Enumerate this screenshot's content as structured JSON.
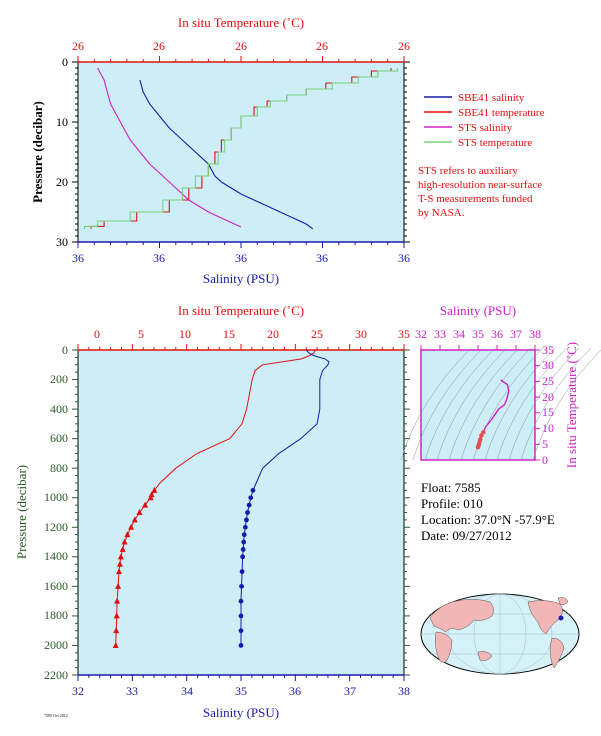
{
  "colors": {
    "plot_bg": "#cdeef6",
    "sbe_salinity": "#1a1aa8",
    "sbe_temperature": "#e01010",
    "sts_salinity": "#d020c8",
    "sts_temperature": "#7ccf7c",
    "ts_salinity_axis": "#d020c8",
    "pressure_axis": "#2a5a2a"
  },
  "top": {
    "temp_axis_label": "In situ Temperature (˚C)",
    "sal_axis_label": "Salinity (PSU)",
    "pressure_label": "Pressure (decibar)",
    "temp_tick_labels": [
      "26",
      "26",
      "26",
      "26",
      "26"
    ],
    "sal_tick_labels": [
      "36",
      "36",
      "36",
      "36",
      "36"
    ],
    "pressure_tick_labels": [
      "0",
      "10",
      "20",
      "30"
    ],
    "legend": [
      {
        "label": "SBE41 salinity",
        "color": "#1a1aa8"
      },
      {
        "label": "SBE41 temperature",
        "color": "#e01010"
      },
      {
        "label": "STS salinity",
        "color": "#d020c8"
      },
      {
        "label": "STS temperature",
        "color": "#7ccf7c"
      }
    ],
    "note_lines": [
      "STS refers to auxiliary",
      "high-resolution near-surface",
      "T-S measurements funded",
      "by NASA."
    ]
  },
  "bottom": {
    "temp_axis_label": "In situ Temperature (˚C)",
    "sal_axis_label": "Salinity (PSU)",
    "pressure_label": "Pressure (decibar)",
    "temp_tick_labels": [
      "0",
      "5",
      "10",
      "15",
      "20",
      "25",
      "30",
      "35"
    ],
    "sal_tick_labels": [
      "32",
      "33",
      "34",
      "35",
      "36",
      "37",
      "38"
    ],
    "pressure_tick_labels": [
      "0",
      "200",
      "400",
      "600",
      "800",
      "1000",
      "1200",
      "1400",
      "1600",
      "1800",
      "2000",
      "2200"
    ],
    "footnote": "7585 Oct 2012"
  },
  "ts_diagram": {
    "sal_axis_label": "Salinity (PSU)",
    "temp_axis_label": "In situ Temperature (˚C)",
    "sal_tick_labels": [
      "32",
      "33",
      "34",
      "35",
      "36",
      "37",
      "38"
    ],
    "temp_tick_labels": [
      "0",
      "5",
      "10",
      "15",
      "20",
      "25",
      "30",
      "35"
    ]
  },
  "info": {
    "float": "Float:  7585",
    "profile": "Profile:  010",
    "location": "Location:  37.0°N  -57.9°E",
    "date": "Date:  09/27/2012"
  },
  "chart_data": [
    {
      "type": "line",
      "title": "",
      "xlabel_top": "In situ Temperature (˚C)",
      "xlabel_bottom": "Salinity (PSU)",
      "ylabel": "Pressure (decibar)",
      "ylim": [
        30,
        0
      ],
      "temp_lim": [
        25.95,
        26.45
      ],
      "sal_lim": [
        35.95,
        36.45
      ],
      "series": [
        {
          "name": "SBE41 salinity",
          "axis": "salinity",
          "pressure": [
            3,
            5,
            7,
            9,
            11,
            13,
            15,
            17,
            19,
            20,
            21,
            22,
            23,
            24,
            25,
            26,
            27,
            27.8
          ],
          "values": [
            36.045,
            36.05,
            36.06,
            36.075,
            36.09,
            36.11,
            36.13,
            36.15,
            36.16,
            36.17,
            36.185,
            36.2,
            36.22,
            36.24,
            36.26,
            36.28,
            36.3,
            36.31
          ]
        },
        {
          "name": "SBE41 temperature",
          "axis": "temperature",
          "pressure": [
            1,
            2,
            3,
            4,
            5,
            6,
            7,
            8,
            10,
            12,
            14,
            16,
            18,
            20,
            22,
            24,
            26,
            27,
            27.8
          ],
          "values": [
            26.43,
            26.4,
            26.37,
            26.33,
            26.3,
            26.27,
            26.24,
            26.22,
            26.2,
            26.185,
            26.17,
            26.16,
            26.15,
            26.14,
            26.12,
            26.09,
            26.04,
            25.99,
            25.97
          ]
        },
        {
          "name": "STS salinity",
          "axis": "salinity",
          "pressure": [
            1,
            2,
            3,
            5,
            7,
            9,
            11,
            13,
            15,
            17,
            19,
            21,
            23,
            25,
            26,
            27.5
          ],
          "values": [
            35.98,
            35.985,
            35.99,
            35.995,
            36.0,
            36.01,
            36.02,
            36.03,
            36.045,
            36.06,
            36.08,
            36.1,
            36.12,
            36.15,
            36.17,
            36.2
          ]
        },
        {
          "name": "STS temperature",
          "axis": "temperature",
          "pressure": [
            1,
            2,
            3,
            4,
            5,
            6,
            7,
            8,
            10,
            12,
            14,
            16,
            18,
            20,
            22,
            24,
            26,
            27,
            27.8
          ],
          "values": [
            26.44,
            26.41,
            26.38,
            26.34,
            26.3,
            26.27,
            26.245,
            26.225,
            26.2,
            26.185,
            26.175,
            26.165,
            26.15,
            26.13,
            26.11,
            26.08,
            26.03,
            25.98,
            25.96
          ]
        }
      ]
    },
    {
      "type": "line",
      "title": "",
      "xlabel_top": "In situ Temperature (˚C)",
      "xlabel_bottom": "Salinity (PSU)",
      "ylabel": "Pressure (decibar)",
      "ylim": [
        2200,
        0
      ],
      "temp_lim": [
        0,
        35
      ],
      "sal_lim": [
        32,
        38
      ],
      "series": [
        {
          "name": "temperature",
          "axis": "temperature",
          "pressure": [
            0,
            20,
            40,
            60,
            80,
            100,
            140,
            200,
            300,
            400,
            500,
            600,
            700,
            800,
            900,
            950,
            980,
            1000,
            1050,
            1100,
            1150,
            1200,
            1250,
            1300,
            1350,
            1400,
            1450,
            1500,
            1600,
            1700,
            1800,
            1900,
            2000
          ],
          "values": [
            25.5,
            25.3,
            24.8,
            24.0,
            22.0,
            19.8,
            19.0,
            18.7,
            18.4,
            18.1,
            17.6,
            16.3,
            12.8,
            10.5,
            8.8,
            8.2,
            7.9,
            7.8,
            7.2,
            6.6,
            6.1,
            5.7,
            5.3,
            5.0,
            4.8,
            4.6,
            4.5,
            4.4,
            4.3,
            4.2,
            4.15,
            4.1,
            4.05
          ]
        },
        {
          "name": "salinity",
          "axis": "salinity",
          "pressure": [
            0,
            20,
            40,
            60,
            80,
            100,
            140,
            200,
            300,
            400,
            500,
            600,
            700,
            800,
            900,
            950,
            1000,
            1050,
            1100,
            1150,
            1200,
            1250,
            1300,
            1350,
            1400,
            1500,
            1600,
            1700,
            1800,
            1900,
            2000
          ],
          "values": [
            36.2,
            36.25,
            36.35,
            36.55,
            36.62,
            36.6,
            36.5,
            36.45,
            36.45,
            36.45,
            36.4,
            36.1,
            35.7,
            35.4,
            35.28,
            35.22,
            35.18,
            35.15,
            35.12,
            35.1,
            35.08,
            35.06,
            35.05,
            35.04,
            35.03,
            35.02,
            35.01,
            35.0,
            35.0,
            35.0,
            35.0
          ]
        }
      ]
    },
    {
      "type": "scatter",
      "title": "",
      "xlabel": "Salinity (PSU)",
      "ylabel": "In situ Temperature (˚C)",
      "xlim": [
        32,
        38
      ],
      "ylim": [
        0,
        35
      ],
      "series": [
        {
          "name": "T-S",
          "x": [
            36.2,
            36.35,
            36.55,
            36.62,
            36.5,
            36.45,
            36.4,
            36.1,
            35.7,
            35.4,
            35.28,
            35.18,
            35.12,
            35.08,
            35.05,
            35.03,
            35.01,
            35.0
          ],
          "y": [
            25.5,
            24.8,
            24.0,
            22.0,
            19.0,
            18.5,
            17.6,
            16.3,
            12.8,
            10.5,
            8.8,
            7.8,
            6.6,
            5.7,
            5.0,
            4.6,
            4.3,
            4.05
          ]
        }
      ]
    }
  ]
}
